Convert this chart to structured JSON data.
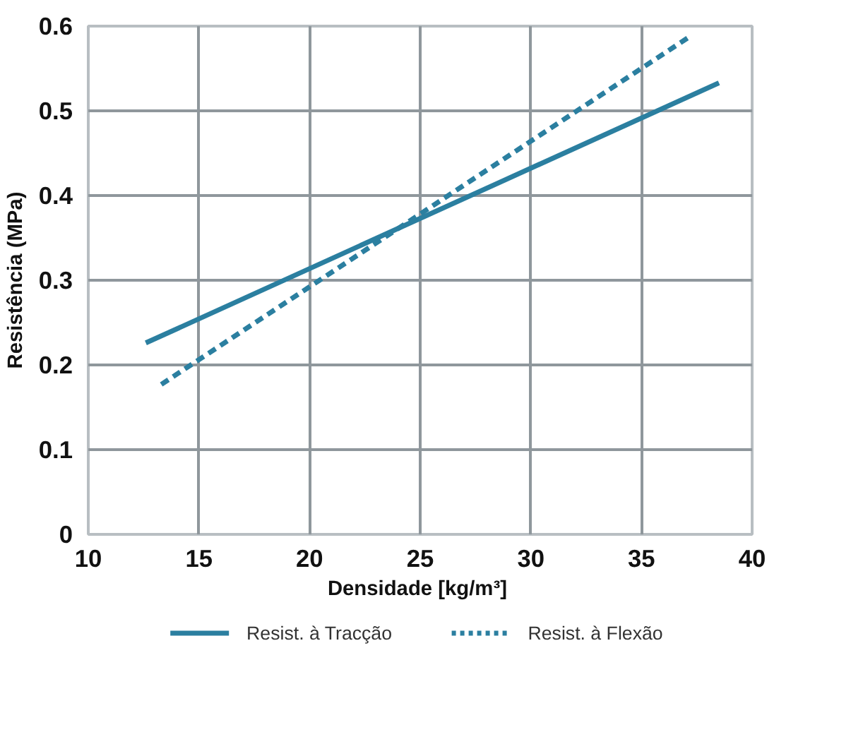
{
  "chart_data": {
    "type": "line",
    "xlabel": "Densidade  [kg/m³]",
    "ylabel": "Resistência (MPa)",
    "series": [
      {
        "name": "Resist. à Tracção",
        "color": "#2b7fa0",
        "x": [
          12.6,
          38.5
        ],
        "values": [
          0.226,
          0.533
        ],
        "line_style": "solid"
      },
      {
        "name": "Resist. à Flexão",
        "color": "#2b7fa0",
        "x": [
          13.3,
          37.2
        ],
        "values": [
          0.177,
          0.588
        ],
        "line_style": "dashed"
      }
    ],
    "xlim": [
      10,
      40
    ],
    "ylim": [
      0,
      0.6
    ],
    "xticks": [
      10,
      15,
      20,
      25,
      30,
      35,
      40
    ],
    "yticks": [
      0,
      0.1,
      0.2,
      0.3,
      0.4,
      0.5,
      0.6
    ],
    "grid": true,
    "legend": "bottom",
    "marker": "none"
  }
}
